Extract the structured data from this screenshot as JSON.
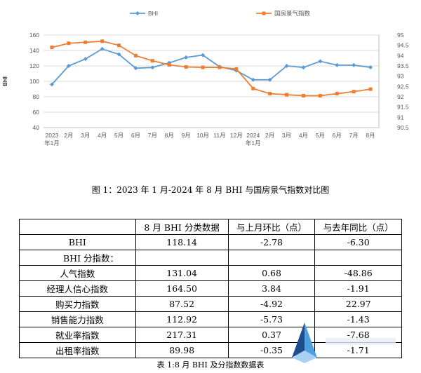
{
  "chart_data": {
    "type": "line",
    "categories": [
      "2023\n年1月",
      "2月",
      "3月",
      "4月",
      "5月",
      "6月",
      "7月",
      "8月",
      "9月",
      "10月",
      "11月",
      "12月",
      "2024\n年1月",
      "2月",
      "3月",
      "4月",
      "5月",
      "6月",
      "7月",
      "8月"
    ],
    "series": [
      {
        "name": "BHI",
        "axis": "left",
        "color": "#5b9bd5",
        "values": [
          96,
          120,
          129,
          142,
          135,
          117,
          118,
          124,
          131,
          134,
          119,
          114,
          102,
          102,
          120,
          118,
          126,
          121,
          121,
          118.14
        ]
      },
      {
        "name": "国房景气指数",
        "axis": "right",
        "color": "#ed7d31",
        "values": [
          94.4,
          94.6,
          94.65,
          94.7,
          94.5,
          94.0,
          93.75,
          93.55,
          93.45,
          93.43,
          93.43,
          93.35,
          92.4,
          92.15,
          92.1,
          92.05,
          92.05,
          92.15,
          92.25,
          92.37
        ]
      }
    ],
    "ylabel": "BHI",
    "ylim": [
      40,
      160
    ],
    "yticks": [
      40,
      60,
      80,
      100,
      120,
      140,
      160
    ],
    "y2lim": [
      90.5,
      95
    ],
    "y2ticks": [
      "90.5",
      "91",
      "91.5",
      "92",
      "92.5",
      "93",
      "93.5",
      "94",
      "94.5",
      "95"
    ],
    "grid": true,
    "legend_position": "top"
  },
  "figure_caption": "图 1：2023 年 1 月-2024 年 8 月 BHI 与国房景气指数对比图",
  "table": {
    "headers": [
      "",
      "8 月 BHI 分类数据",
      "与上月环比（点）",
      "与去年同比（点）"
    ],
    "rows": [
      {
        "label": "BHI",
        "values": [
          "118.14",
          "-2.78",
          "-6.30"
        ]
      },
      {
        "label": "BHI 分指数：",
        "values": [
          "",
          "",
          ""
        ]
      },
      {
        "label": "人气指数",
        "values": [
          "131.04",
          "0.68",
          "-48.86"
        ]
      },
      {
        "label": "经理人信心指数",
        "values": [
          "164.50",
          "3.84",
          "-1.91"
        ]
      },
      {
        "label": "购买力指数",
        "values": [
          "87.52",
          "-4.92",
          "22.97"
        ]
      },
      {
        "label": "销售能力指数",
        "values": [
          "112.92",
          "-5.73",
          "-1.43"
        ]
      },
      {
        "label": "就业率指数",
        "values": [
          "217.31",
          "0.37",
          "-7.68"
        ]
      },
      {
        "label": "出租率指数",
        "values": [
          "89.98",
          "-0.35",
          "-1.71"
        ]
      }
    ]
  },
  "table_caption": "表 1:8 月 BHI 及分指数数据表"
}
